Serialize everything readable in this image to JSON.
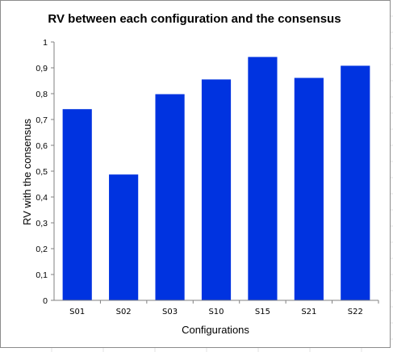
{
  "chart_data": {
    "type": "bar",
    "title": "RV between each configuration and the consensus",
    "xlabel": "Configurations",
    "ylabel": "RV with the consensus",
    "categories": [
      "S01",
      "S02",
      "S03",
      "S10",
      "S15",
      "S21",
      "S22"
    ],
    "values": [
      0.74,
      0.487,
      0.798,
      0.855,
      0.942,
      0.861,
      0.908
    ],
    "ylim": [
      0,
      1
    ],
    "yticks": [
      "0",
      "0,1",
      "0,2",
      "0,3",
      "0,4",
      "0,5",
      "0,6",
      "0,7",
      "0,8",
      "0,9",
      "1"
    ],
    "grid": false,
    "legend": "none",
    "bar_color": "#0033e0",
    "axis_color": "#808080"
  }
}
